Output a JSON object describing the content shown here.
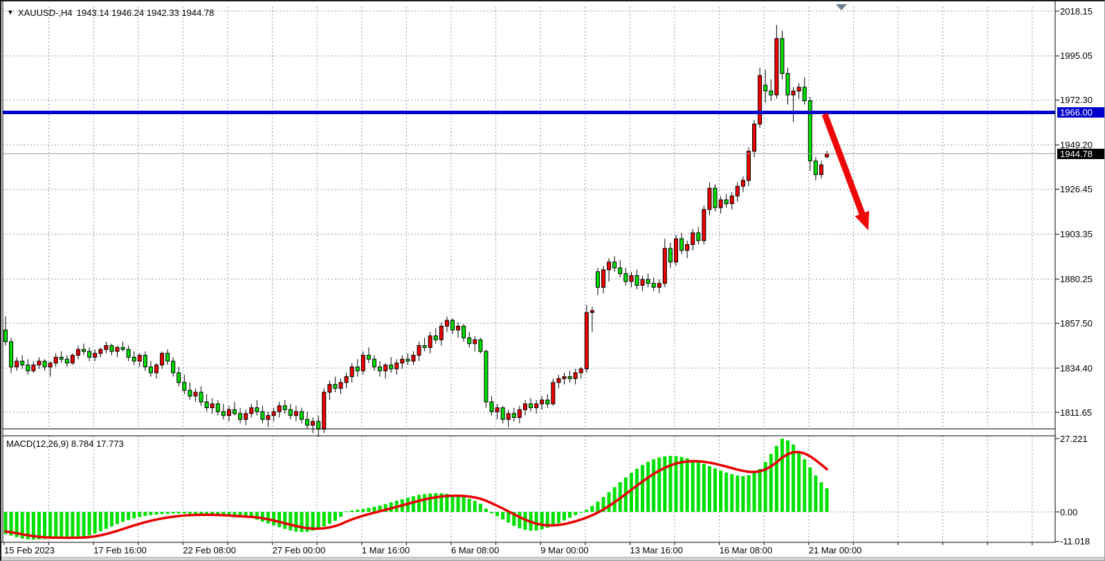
{
  "chart": {
    "title_symbol": "XAUUSD-,H4",
    "title_quotes": "1943.14 1946.24 1942.33 1944.78",
    "macd_label": "MACD(12,26,9) 8.784 17.773"
  },
  "chart_data": {
    "type": "candlestick",
    "symbol": "XAUUSD-",
    "timeframe": "H4",
    "quote": {
      "open": 1943.14,
      "high": 1946.24,
      "low": 1942.33,
      "close": 1944.78
    },
    "title": "XAUUSD-,H4 1943.14 1946.24 1942.33 1944.78",
    "price_axis_ticks": [
      2018.15,
      1995.05,
      1972.3,
      1949.2,
      1926.45,
      1903.35,
      1880.25,
      1857.5,
      1834.4,
      1811.65
    ],
    "ylim": [
      1803,
      2020
    ],
    "time_axis_ticks": [
      "15 Feb 2023",
      "17 Feb 16:00",
      "22 Feb 08:00",
      "27 Feb 00:00",
      "1 Mar 16:00",
      "6 Mar 08:00",
      "9 Mar 00:00",
      "13 Mar 16:00",
      "16 Mar 08:00",
      "21 Mar 00:00"
    ],
    "grid": true,
    "colors": {
      "bull": "#ef0000",
      "bear": "#00dd00",
      "wick": "#000000",
      "hline": "#0000cd",
      "current_price_tag": "#000000",
      "macd_histogram": "#00e000",
      "macd_signal": "#e80000",
      "arrow": "#ee0707",
      "grid_dash": "#8c98a6",
      "marker_triangle": "#6e7e90"
    },
    "hline": {
      "price": 1966.0,
      "label": "1966.00"
    },
    "current_price": {
      "price": 1944.78,
      "label": "1944.78"
    },
    "candles_ohlc": [
      [
        1854,
        1861,
        1846,
        1848
      ],
      [
        1848,
        1850,
        1832,
        1835
      ],
      [
        1835,
        1840,
        1833,
        1838
      ],
      [
        1838,
        1841,
        1834,
        1836
      ],
      [
        1836,
        1839,
        1831,
        1833
      ],
      [
        1833,
        1838,
        1832,
        1836
      ],
      [
        1836,
        1840,
        1834,
        1838
      ],
      [
        1838,
        1839,
        1833,
        1835
      ],
      [
        1835,
        1838,
        1830,
        1837
      ],
      [
        1837,
        1842,
        1835,
        1840
      ],
      [
        1840,
        1843,
        1837,
        1839
      ],
      [
        1839,
        1841,
        1835,
        1837
      ],
      [
        1837,
        1842,
        1836,
        1841
      ],
      [
        1841,
        1846,
        1839,
        1844
      ],
      [
        1844,
        1847,
        1841,
        1843
      ],
      [
        1843,
        1845,
        1838,
        1840
      ],
      [
        1840,
        1844,
        1838,
        1842
      ],
      [
        1842,
        1845,
        1840,
        1844
      ],
      [
        1844,
        1848,
        1842,
        1846
      ],
      [
        1846,
        1847,
        1841,
        1843
      ],
      [
        1843,
        1846,
        1840,
        1845
      ],
      [
        1845,
        1848,
        1843,
        1844
      ],
      [
        1844,
        1846,
        1838,
        1840
      ],
      [
        1840,
        1843,
        1836,
        1838
      ],
      [
        1838,
        1842,
        1835,
        1841
      ],
      [
        1841,
        1843,
        1833,
        1835
      ],
      [
        1835,
        1838,
        1830,
        1832
      ],
      [
        1832,
        1837,
        1829,
        1836
      ],
      [
        1836,
        1843,
        1834,
        1842
      ],
      [
        1842,
        1844,
        1836,
        1838
      ],
      [
        1838,
        1840,
        1830,
        1832
      ],
      [
        1832,
        1835,
        1825,
        1827
      ],
      [
        1827,
        1831,
        1821,
        1823
      ],
      [
        1823,
        1827,
        1818,
        1820
      ],
      [
        1820,
        1824,
        1817,
        1822
      ],
      [
        1822,
        1825,
        1815,
        1817
      ],
      [
        1817,
        1821,
        1812,
        1814
      ],
      [
        1814,
        1819,
        1811,
        1816
      ],
      [
        1816,
        1818,
        1810,
        1812
      ],
      [
        1812,
        1816,
        1808,
        1810
      ],
      [
        1810,
        1815,
        1807,
        1813
      ],
      [
        1813,
        1817,
        1810,
        1811
      ],
      [
        1811,
        1814,
        1806,
        1808
      ],
      [
        1808,
        1813,
        1805,
        1811
      ],
      [
        1811,
        1816,
        1809,
        1814
      ],
      [
        1814,
        1818,
        1810,
        1812
      ],
      [
        1812,
        1815,
        1806,
        1808
      ],
      [
        1808,
        1812,
        1804,
        1810
      ],
      [
        1810,
        1814,
        1807,
        1812
      ],
      [
        1812,
        1817,
        1809,
        1815
      ],
      [
        1815,
        1818,
        1811,
        1813
      ],
      [
        1813,
        1816,
        1808,
        1810
      ],
      [
        1810,
        1815,
        1807,
        1812
      ],
      [
        1812,
        1814,
        1806,
        1808
      ],
      [
        1808,
        1812,
        1803,
        1805
      ],
      [
        1805,
        1809,
        1801,
        1807
      ],
      [
        1807,
        1810,
        1799,
        1803
      ],
      [
        1803,
        1824,
        1801,
        1822
      ],
      [
        1822,
        1828,
        1818,
        1826
      ],
      [
        1826,
        1830,
        1822,
        1824
      ],
      [
        1824,
        1829,
        1821,
        1827
      ],
      [
        1827,
        1832,
        1824,
        1830
      ],
      [
        1830,
        1837,
        1827,
        1835
      ],
      [
        1835,
        1839,
        1830,
        1833
      ],
      [
        1833,
        1843,
        1831,
        1841
      ],
      [
        1841,
        1845,
        1837,
        1839
      ],
      [
        1839,
        1841,
        1833,
        1835
      ],
      [
        1835,
        1838,
        1830,
        1833
      ],
      [
        1833,
        1837,
        1829,
        1836
      ],
      [
        1836,
        1840,
        1832,
        1834
      ],
      [
        1834,
        1839,
        1831,
        1837
      ],
      [
        1837,
        1841,
        1834,
        1839
      ],
      [
        1839,
        1842,
        1836,
        1838
      ],
      [
        1838,
        1843,
        1836,
        1841
      ],
      [
        1841,
        1848,
        1838,
        1846
      ],
      [
        1846,
        1850,
        1843,
        1845
      ],
      [
        1845,
        1853,
        1842,
        1851
      ],
      [
        1851,
        1855,
        1847,
        1849
      ],
      [
        1849,
        1858,
        1846,
        1856
      ],
      [
        1856,
        1861,
        1853,
        1859
      ],
      [
        1859,
        1860,
        1852,
        1854
      ],
      [
        1854,
        1858,
        1850,
        1856
      ],
      [
        1856,
        1857,
        1848,
        1850
      ],
      [
        1850,
        1853,
        1845,
        1847
      ],
      [
        1847,
        1851,
        1843,
        1849
      ],
      [
        1849,
        1850,
        1842,
        1843
      ],
      [
        1843,
        1844,
        1814,
        1817
      ],
      [
        1817,
        1820,
        1810,
        1812
      ],
      [
        1812,
        1816,
        1808,
        1814
      ],
      [
        1814,
        1815,
        1806,
        1808
      ],
      [
        1808,
        1813,
        1804,
        1811
      ],
      [
        1811,
        1814,
        1807,
        1809
      ],
      [
        1809,
        1815,
        1806,
        1813
      ],
      [
        1813,
        1818,
        1810,
        1816
      ],
      [
        1816,
        1819,
        1812,
        1814
      ],
      [
        1814,
        1818,
        1811,
        1816
      ],
      [
        1816,
        1820,
        1813,
        1818
      ],
      [
        1818,
        1821,
        1814,
        1816
      ],
      [
        1816,
        1829,
        1815,
        1827
      ],
      [
        1827,
        1831,
        1824,
        1829
      ],
      [
        1829,
        1832,
        1826,
        1830
      ],
      [
        1830,
        1833,
        1827,
        1829
      ],
      [
        1829,
        1834,
        1826,
        1832
      ],
      [
        1832,
        1835,
        1829,
        1834
      ],
      [
        1834,
        1867,
        1832,
        1863
      ],
      [
        1863,
        1866,
        1853,
        1864
      ],
      [
        1884,
        1886,
        1872,
        1876
      ],
      [
        1876,
        1887,
        1873,
        1885
      ],
      [
        1885,
        1891,
        1879,
        1889
      ],
      [
        1889,
        1892,
        1884,
        1886
      ],
      [
        1886,
        1890,
        1881,
        1883
      ],
      [
        1883,
        1886,
        1877,
        1879
      ],
      [
        1879,
        1884,
        1876,
        1882
      ],
      [
        1882,
        1885,
        1875,
        1877
      ],
      [
        1877,
        1882,
        1874,
        1880
      ],
      [
        1880,
        1883,
        1876,
        1878
      ],
      [
        1878,
        1881,
        1874,
        1876
      ],
      [
        1876,
        1880,
        1873,
        1878
      ],
      [
        1878,
        1901,
        1876,
        1896
      ],
      [
        1896,
        1899,
        1886,
        1889
      ],
      [
        1889,
        1903,
        1887,
        1901
      ],
      [
        1901,
        1904,
        1893,
        1895
      ],
      [
        1895,
        1900,
        1891,
        1898
      ],
      [
        1898,
        1906,
        1895,
        1904
      ],
      [
        1904,
        1907,
        1898,
        1900
      ],
      [
        1900,
        1918,
        1898,
        1916
      ],
      [
        1916,
        1930,
        1913,
        1927
      ],
      [
        1927,
        1929,
        1915,
        1917
      ],
      [
        1917,
        1923,
        1914,
        1921
      ],
      [
        1921,
        1924,
        1917,
        1919
      ],
      [
        1919,
        1925,
        1916,
        1923
      ],
      [
        1923,
        1930,
        1920,
        1928
      ],
      [
        1928,
        1933,
        1925,
        1931
      ],
      [
        1931,
        1948,
        1928,
        1946
      ],
      [
        1946,
        1962,
        1943,
        1960
      ],
      [
        1960,
        1989,
        1958,
        1985
      ],
      [
        1980,
        1988,
        1971,
        1977
      ],
      [
        1977,
        1983,
        1972,
        1975
      ],
      [
        1975,
        2011,
        1973,
        2004
      ],
      [
        2004,
        2008,
        1983,
        1986
      ],
      [
        1986,
        1989,
        1970,
        1975
      ],
      [
        1975,
        1979,
        1961,
        1977
      ],
      [
        1977,
        1981,
        1973,
        1979
      ],
      [
        1979,
        1984,
        1970,
        1972
      ],
      [
        1972,
        1974,
        1936,
        1941
      ],
      [
        1941,
        1943,
        1931,
        1934
      ],
      [
        1934,
        1941,
        1932,
        1939
      ],
      [
        1943.14,
        1946.24,
        1942.33,
        1944.78
      ]
    ],
    "macd": {
      "label": "MACD(12,26,9)",
      "current_main": "8.784",
      "current_signal": "17.773",
      "axis_ticks": [
        27.221,
        0.0,
        -11.018
      ],
      "ylim": [
        -11.3,
        28.2
      ],
      "histogram": [
        -8.2,
        -8.8,
        -9.4,
        -9.9,
        -10.2,
        -10.3,
        -10.2,
        -10.1,
        -9.9,
        -9.8,
        -9.7,
        -9.7,
        -9.6,
        -9.5,
        -9.2,
        -8.7,
        -8.0,
        -7.2,
        -6.3,
        -5.4,
        -4.5,
        -3.7,
        -3.0,
        -2.4,
        -1.9,
        -1.5,
        -1.2,
        -1.0,
        -0.8,
        -0.7,
        -0.6,
        -0.6,
        -0.6,
        -0.7,
        -0.8,
        -0.9,
        -1.0,
        -1.2,
        -1.4,
        -1.6,
        -1.8,
        -2.0,
        -2.1,
        -2.2,
        -2.3,
        -2.9,
        -3.6,
        -4.3,
        -5.0,
        -5.7,
        -6.3,
        -6.9,
        -7.3,
        -7.5,
        -7.4,
        -7.0,
        -6.3,
        -5.4,
        -4.4,
        -3.3,
        -1.8,
        0.2,
        0.5,
        0.8,
        1.1,
        1.5,
        1.9,
        2.4,
        2.9,
        3.5,
        4.1,
        4.7,
        5.3,
        5.8,
        6.3,
        6.6,
        6.8,
        6.9,
        6.9,
        6.7,
        6.4,
        6.0,
        5.5,
        4.9,
        4.0,
        3.0,
        1.2,
        -0.5,
        -1.6,
        -2.8,
        -4.0,
        -5.2,
        -6.1,
        -6.7,
        -7.0,
        -6.9,
        -6.5,
        -5.9,
        -5.1,
        -4.2,
        -3.2,
        -2.2,
        -1.2,
        -0.3,
        0.8,
        2.2,
        3.8,
        5.5,
        7.3,
        9.2,
        11.0,
        12.8,
        14.5,
        16.0,
        17.4,
        18.6,
        19.5,
        20.2,
        20.6,
        20.8,
        20.7,
        20.4,
        19.9,
        19.3,
        18.6,
        17.8,
        17.0,
        16.2,
        15.4,
        14.6,
        14.0,
        13.5,
        13.3,
        13.6,
        14.5,
        16.0,
        18.5,
        21.5,
        24.5,
        27.2,
        26.5,
        25.0,
        22.5,
        19.5,
        16.5,
        13.5,
        11.0,
        8.784
      ],
      "signal_seed": -7.0,
      "signal_period": 9
    },
    "annotations": {
      "trend_arrow": {
        "type": "arrow-down-right",
        "from_price": 1965,
        "to_price": 1904
      },
      "top_marker": {
        "type": "triangle-down",
        "near_time": "20 Mar"
      }
    },
    "legend_position": "none"
  }
}
